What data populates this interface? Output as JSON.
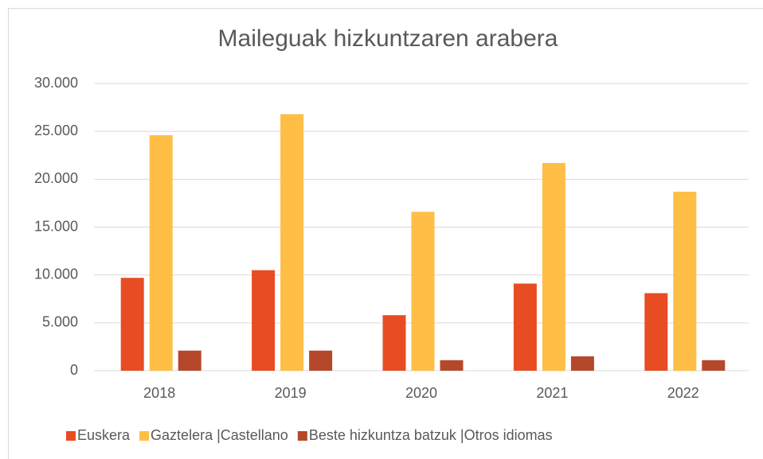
{
  "chart_data": {
    "type": "bar",
    "title": "Maileguak hizkuntzaren arabera",
    "categories": [
      "2018",
      "2019",
      "2020",
      "2021",
      "2022"
    ],
    "series": [
      {
        "name": "Euskera",
        "color": "#e84c22",
        "values": [
          9700,
          10500,
          5800,
          9100,
          8100
        ]
      },
      {
        "name": "Gaztelera |Castellano",
        "color": "#ffbe46",
        "values": [
          24600,
          26800,
          16600,
          21700,
          18700
        ]
      },
      {
        "name": "Beste hizkuntza batzuk |Otros idiomas",
        "color": "#b5482a",
        "values": [
          2100,
          2100,
          1100,
          1500,
          1100
        ]
      }
    ],
    "ylim": [
      0,
      30000
    ],
    "yticks": [
      0,
      {
        "value": 5000,
        "label": "5.000"
      },
      {
        "value": 10000,
        "label": "10.000"
      },
      {
        "value": 15000,
        "label": "15.000"
      },
      {
        "value": 20000,
        "label": "20.000"
      },
      {
        "value": 25000,
        "label": "25.000"
      },
      {
        "value": 30000,
        "label": "30.000"
      }
    ],
    "grid": true,
    "legend": "bottom"
  }
}
